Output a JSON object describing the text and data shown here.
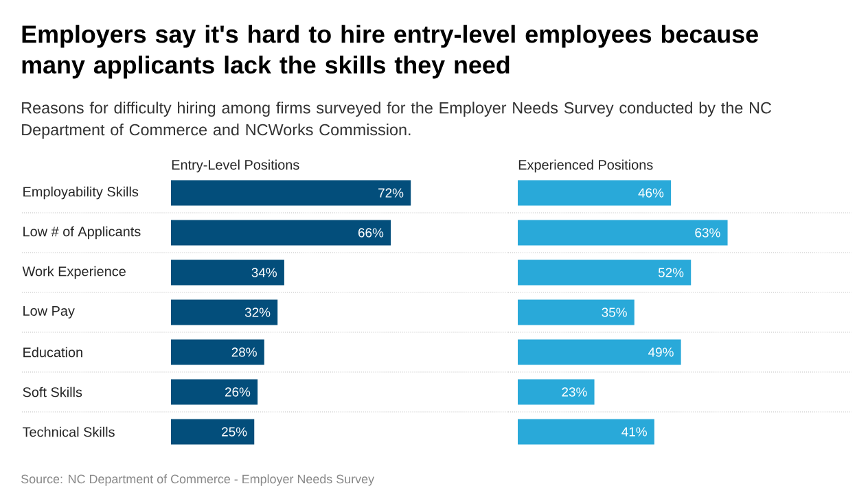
{
  "chart_data": [
    {
      "type": "bar",
      "orientation": "horizontal",
      "title": "Employers say it's hard to hire entry-level employees because many applicants lack the skills they need",
      "subtitle": "Reasons for difficulty hiring among firms surveyed for the Employer Needs Survey conducted by the NC Department of Commerce and NCWorks Commission.",
      "categories": [
        "Employability Skills",
        "Low # of Applicants",
        "Work Experience",
        "Low Pay",
        "Education",
        "Soft Skills",
        "Technical Skills"
      ],
      "grid": "y",
      "tick_labels": "y",
      "series": [
        {
          "name": "Entry-Level Positions",
          "color": "#034e7b",
          "values": [
            72,
            66,
            34,
            32,
            28,
            26,
            25
          ],
          "value_labels": [
            "72%",
            "66%",
            "34%",
            "32%",
            "28%",
            "26%",
            "25%"
          ]
        }
      ]
    },
    {
      "type": "bar",
      "orientation": "horizontal",
      "categories": [
        null,
        null,
        null,
        null,
        null,
        null,
        null
      ],
      "grid": "y",
      "tick_labels": false,
      "annotations": [
        "Source: NC Department of Commerce - Employer Needs Survey"
      ],
      "series": [
        {
          "name": "Experienced Positions",
          "color": "#29a9d9",
          "values": [
            46,
            63,
            52,
            35,
            49,
            23,
            41
          ],
          "value_labels": [
            "46%",
            "63%",
            "52%",
            "35%",
            "49%",
            "23%",
            "41%"
          ]
        }
      ]
    }
  ]
}
